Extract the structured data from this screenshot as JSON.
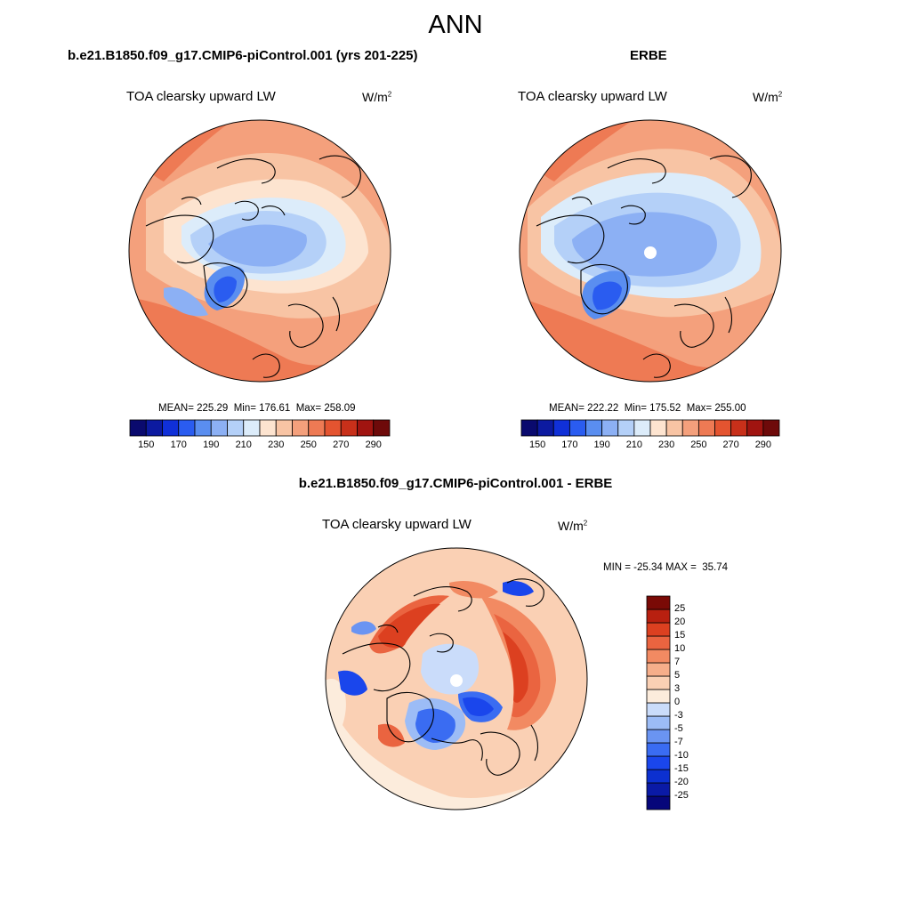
{
  "page": {
    "title": "ANN"
  },
  "panels": [
    {
      "case_title": "b.e21.B1850.f09_g17.CMIP6-piControl.001 (yrs 201-225)",
      "variable": "TOA clearsky upward LW",
      "units": "W/m",
      "units_exp": "2",
      "stats": "MEAN= 225.29  Min= 176.61  Max= 258.09"
    },
    {
      "case_title": "ERBE",
      "variable": "TOA clearsky upward LW",
      "units": "W/m",
      "units_exp": "2",
      "stats": "MEAN= 222.22  Min= 175.52  Max= 255.00"
    },
    {
      "case_title": "b.e21.B1850.f09_g17.CMIP6-piControl.001 - ERBE",
      "variable": "TOA clearsky upward LW",
      "units": "W/m",
      "units_exp": "2",
      "stats": "MIN = -25.34 MAX =  35.74"
    }
  ],
  "chart_data": [
    {
      "type": "heatmap",
      "projection": "north polar stereographic",
      "title": "TOA clearsky upward LW",
      "subtitle": "b.e21.B1850.f09_g17.CMIP6-piControl.001 (yrs 201-225)",
      "units": "W/m2",
      "mean": 225.29,
      "min": 176.61,
      "max": 258.09,
      "colorbar": {
        "orientation": "horizontal",
        "levels": [
          150,
          160,
          170,
          180,
          190,
          200,
          210,
          220,
          230,
          240,
          250,
          260,
          270,
          280,
          290
        ],
        "tick_labels": [
          "150",
          "170",
          "190",
          "210",
          "230",
          "250",
          "270",
          "290"
        ],
        "colors": [
          "#0a0a6e",
          "#0c1aa0",
          "#1030d8",
          "#2a5cf0",
          "#5a8ef0",
          "#8cb0f4",
          "#b4d0f8",
          "#dcecfa",
          "#fde4d0",
          "#f8c4a4",
          "#f4a07c",
          "#ee7a54",
          "#e45430",
          "#c8301a",
          "#a01410",
          "#6e0a0a"
        ]
      }
    },
    {
      "type": "heatmap",
      "projection": "north polar stereographic",
      "title": "TOA clearsky upward LW",
      "subtitle": "ERBE",
      "units": "W/m2",
      "mean": 222.22,
      "min": 175.52,
      "max": 255.0,
      "colorbar": {
        "orientation": "horizontal",
        "levels": [
          150,
          160,
          170,
          180,
          190,
          200,
          210,
          220,
          230,
          240,
          250,
          260,
          270,
          280,
          290
        ],
        "tick_labels": [
          "150",
          "170",
          "190",
          "210",
          "230",
          "250",
          "270",
          "290"
        ],
        "colors": [
          "#0a0a6e",
          "#0c1aa0",
          "#1030d8",
          "#2a5cf0",
          "#5a8ef0",
          "#8cb0f4",
          "#b4d0f8",
          "#dcecfa",
          "#fde4d0",
          "#f8c4a4",
          "#f4a07c",
          "#ee7a54",
          "#e45430",
          "#c8301a",
          "#a01410",
          "#6e0a0a"
        ]
      }
    },
    {
      "type": "heatmap",
      "projection": "north polar stereographic",
      "title": "TOA clearsky upward LW",
      "subtitle": "b.e21.B1850.f09_g17.CMIP6-piControl.001 - ERBE",
      "units": "W/m2",
      "min": -25.34,
      "max": 35.74,
      "colorbar": {
        "orientation": "vertical",
        "levels": [
          -25,
          -20,
          -15,
          -10,
          -7,
          -5,
          -3,
          0,
          3,
          5,
          7,
          10,
          15,
          20,
          25
        ],
        "tick_labels": [
          "-25",
          "-20",
          "-15",
          "-10",
          "-7",
          "-5",
          "-3",
          "0",
          "3",
          "5",
          "7",
          "10",
          "15",
          "20",
          "25"
        ],
        "colors": [
          "#06067a",
          "#0a1aa6",
          "#0c30d0",
          "#1a46ec",
          "#3a6cf2",
          "#6a94f2",
          "#9cbcf6",
          "#cadcfa",
          "#fcecdc",
          "#fad0b4",
          "#f6ae8a",
          "#f28a62",
          "#ea6440",
          "#dc4020",
          "#b82010",
          "#7a0a06"
        ]
      }
    }
  ]
}
